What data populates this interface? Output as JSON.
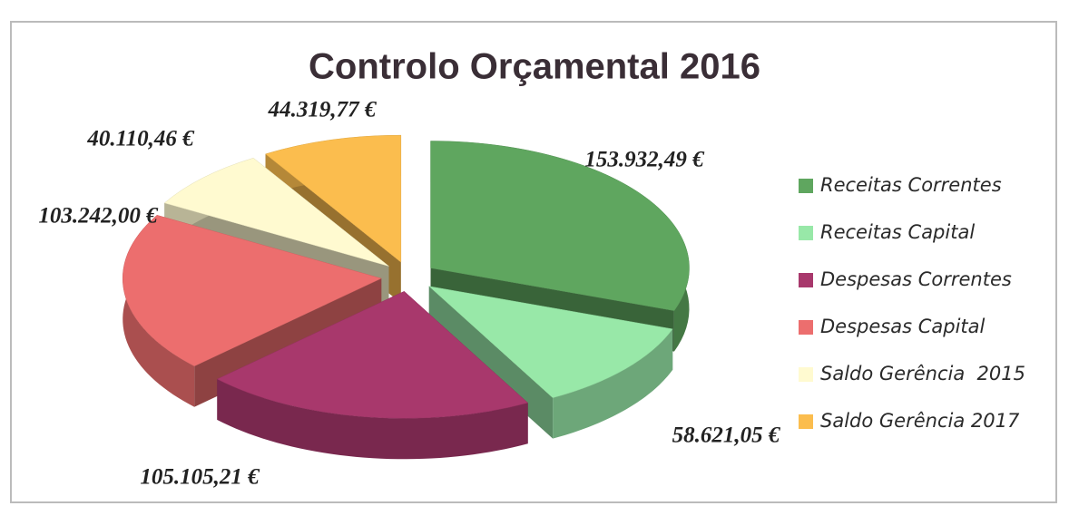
{
  "chart_data": {
    "type": "pie3d",
    "title": "Controlo Orçamental 2016",
    "categories": [
      "Receitas Correntes",
      "Receitas Capital",
      "Despesas Correntes",
      "Despesas Capital",
      "Saldo Gerência  2015",
      "Saldo Gerência 2017"
    ],
    "values": [
      153932.49,
      58621.05,
      105105.21,
      103242.0,
      40110.46,
      44319.77
    ],
    "value_labels": [
      "153.932,49 €",
      "58.621,05 €",
      "105.105,21 €",
      "103.242,00 €",
      "40.110,46 €",
      "44.319,77 €"
    ],
    "colors": [
      "#5fa65f",
      "#98e8a8",
      "#a8386c",
      "#ec6e6e",
      "#fffad0",
      "#fbbd4e"
    ],
    "legend": "right"
  }
}
